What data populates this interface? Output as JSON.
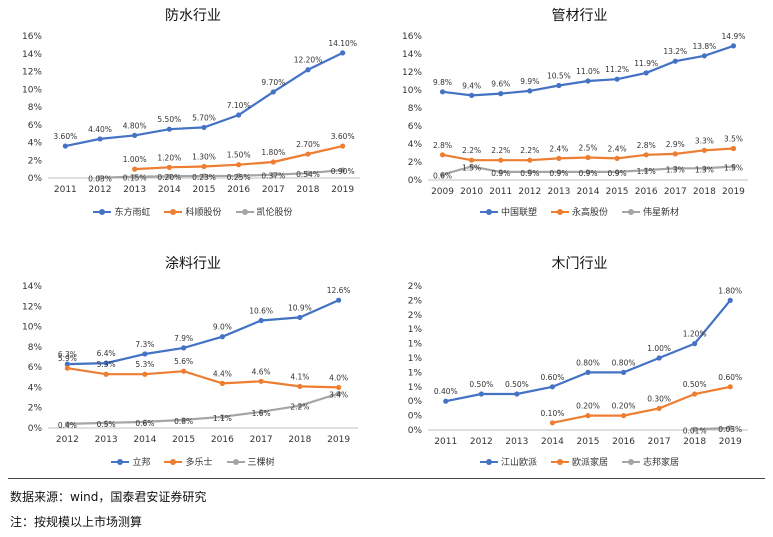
{
  "chart_data": [
    {
      "type": "line",
      "title": "防水行业",
      "ylim": [
        0,
        16
      ],
      "ytick_step": 2,
      "yticks": [
        "0%",
        "2%",
        "4%",
        "6%",
        "8%",
        "10%",
        "12%",
        "14%",
        "16%"
      ],
      "categories": [
        "2011",
        "2012",
        "2013",
        "2014",
        "2015",
        "2016",
        "2017",
        "2018",
        "2019"
      ],
      "series": [
        {
          "name": "东方雨虹",
          "color": "#4472C4",
          "values": [
            3.6,
            4.4,
            4.8,
            5.5,
            5.7,
            7.1,
            9.7,
            12.2,
            14.1
          ],
          "labels": [
            "3.60%",
            "4.40%",
            "4.80%",
            "5.50%",
            "5.70%",
            "7.10%",
            "9.70%",
            "12.20%",
            "14.10%"
          ]
        },
        {
          "name": "科顺股份",
          "color": "#ED7D31",
          "values": [
            null,
            null,
            1.0,
            1.2,
            1.3,
            1.5,
            1.8,
            2.7,
            3.6
          ],
          "labels": [
            "",
            "",
            "1.00%",
            "1.20%",
            "1.30%",
            "1.50%",
            "1.80%",
            "2.70%",
            "3.60%"
          ]
        },
        {
          "name": "凯伦股份",
          "color": "#A5A5A5",
          "values": [
            null,
            0.03,
            0.15,
            0.2,
            0.23,
            0.25,
            0.37,
            0.54,
            0.9
          ],
          "labels": [
            "",
            "0.03%",
            "0.15%",
            "0.20%",
            "0.23%",
            "0.25%",
            "0.37%",
            "0.54%",
            "0.90%"
          ]
        }
      ]
    },
    {
      "type": "line",
      "title": "管材行业",
      "ylim": [
        0,
        16
      ],
      "ytick_step": 2,
      "yticks": [
        "0%",
        "2%",
        "4%",
        "6%",
        "8%",
        "10%",
        "12%",
        "14%",
        "16%"
      ],
      "categories": [
        "2009",
        "2010",
        "2011",
        "2012",
        "2013",
        "2014",
        "2015",
        "2016",
        "2017",
        "2018",
        "2019"
      ],
      "series": [
        {
          "name": "中国联塑",
          "color": "#4472C4",
          "values": [
            9.8,
            9.4,
            9.6,
            9.9,
            10.5,
            11.0,
            11.2,
            11.9,
            13.2,
            13.8,
            14.9
          ],
          "labels": [
            "9.8%",
            "9.4%",
            "9.6%",
            "9.9%",
            "10.5%",
            "11.0%",
            "11.2%",
            "11.9%",
            "13.2%",
            "13.8%",
            "14.9%"
          ]
        },
        {
          "name": "永高股份",
          "color": "#ED7D31",
          "values": [
            2.8,
            2.2,
            2.2,
            2.2,
            2.4,
            2.5,
            2.4,
            2.8,
            2.9,
            3.3,
            3.5
          ],
          "labels": [
            "2.8%",
            "2.2%",
            "2.2%",
            "2.2%",
            "2.4%",
            "2.5%",
            "2.4%",
            "2.8%",
            "2.9%",
            "3.3%",
            "3.5%"
          ]
        },
        {
          "name": "伟星新材",
          "color": "#A5A5A5",
          "values": [
            0.6,
            1.5,
            0.9,
            0.9,
            0.9,
            0.9,
            0.9,
            1.1,
            1.3,
            1.3,
            1.5
          ],
          "labels": [
            "0.6%",
            "1.5%",
            "0.9%",
            "0.9%",
            "0.9%",
            "0.9%",
            "0.9%",
            "1.1%",
            "1.3%",
            "1.3%",
            "1.5%"
          ]
        }
      ]
    },
    {
      "type": "line",
      "title": "涂料行业",
      "ylim": [
        0,
        14
      ],
      "ytick_step": 2,
      "yticks": [
        "0%",
        "2%",
        "4%",
        "6%",
        "8%",
        "10%",
        "12%",
        "14%"
      ],
      "categories": [
        "2012",
        "2013",
        "2014",
        "2015",
        "2016",
        "2017",
        "2018",
        "2019"
      ],
      "series": [
        {
          "name": "立邦",
          "color": "#4472C4",
          "values": [
            6.3,
            6.4,
            7.3,
            7.9,
            9.0,
            10.6,
            10.9,
            12.6
          ],
          "labels": [
            "6.3%",
            "6.4%",
            "7.3%",
            "7.9%",
            "9.0%",
            "10.6%",
            "10.9%",
            "12.6%"
          ]
        },
        {
          "name": "多乐士",
          "color": "#ED7D31",
          "values": [
            5.9,
            5.3,
            5.3,
            5.6,
            4.4,
            4.6,
            4.1,
            4.0
          ],
          "labels": [
            "5.9%",
            "5.3%",
            "5.3%",
            "5.6%",
            "4.4%",
            "4.6%",
            "4.1%",
            "4.0%"
          ]
        },
        {
          "name": "三棵树",
          "color": "#A5A5A5",
          "values": [
            0.4,
            0.5,
            0.6,
            0.8,
            1.1,
            1.6,
            2.2,
            3.4
          ],
          "labels": [
            "0.4%",
            "0.5%",
            "0.6%",
            "0.8%",
            "1.1%",
            "1.6%",
            "2.2%",
            "3.4%"
          ]
        }
      ]
    },
    {
      "type": "line",
      "title": "木门行业",
      "ylim": [
        0,
        2
      ],
      "ytick_step": 0.2,
      "yticks": [
        "0%",
        "0%",
        "0%",
        "1%",
        "1%",
        "1%",
        "1%",
        "1%",
        "2%",
        "2%",
        "2%"
      ],
      "categories": [
        "2011",
        "2012",
        "2013",
        "2014",
        "2015",
        "2016",
        "2017",
        "2018",
        "2019"
      ],
      "series": [
        {
          "name": "江山欧派",
          "color": "#4472C4",
          "values": [
            0.4,
            0.5,
            0.5,
            0.6,
            0.8,
            0.8,
            1.0,
            1.2,
            1.8
          ],
          "labels": [
            "0.40%",
            "0.50%",
            "0.50%",
            "0.60%",
            "0.80%",
            "0.80%",
            "1.00%",
            "1.20%",
            "1.80%"
          ]
        },
        {
          "name": "欧派家居",
          "color": "#ED7D31",
          "values": [
            null,
            null,
            null,
            0.1,
            0.2,
            0.2,
            0.3,
            0.5,
            0.6
          ],
          "labels": [
            "",
            "",
            "",
            "0.10%",
            "0.20%",
            "0.20%",
            "0.30%",
            "0.50%",
            "0.60%"
          ]
        },
        {
          "name": "志邦家居",
          "color": "#A5A5A5",
          "values": [
            null,
            null,
            null,
            null,
            null,
            null,
            null,
            0.01,
            0.03
          ],
          "labels": [
            "",
            "",
            "",
            "",
            "",
            "",
            "",
            "0.01%",
            "0.03%"
          ]
        }
      ]
    }
  ],
  "footer": {
    "source": "数据来源：wind，国泰君安证券研究",
    "note": "注：按规模以上市场测算"
  }
}
